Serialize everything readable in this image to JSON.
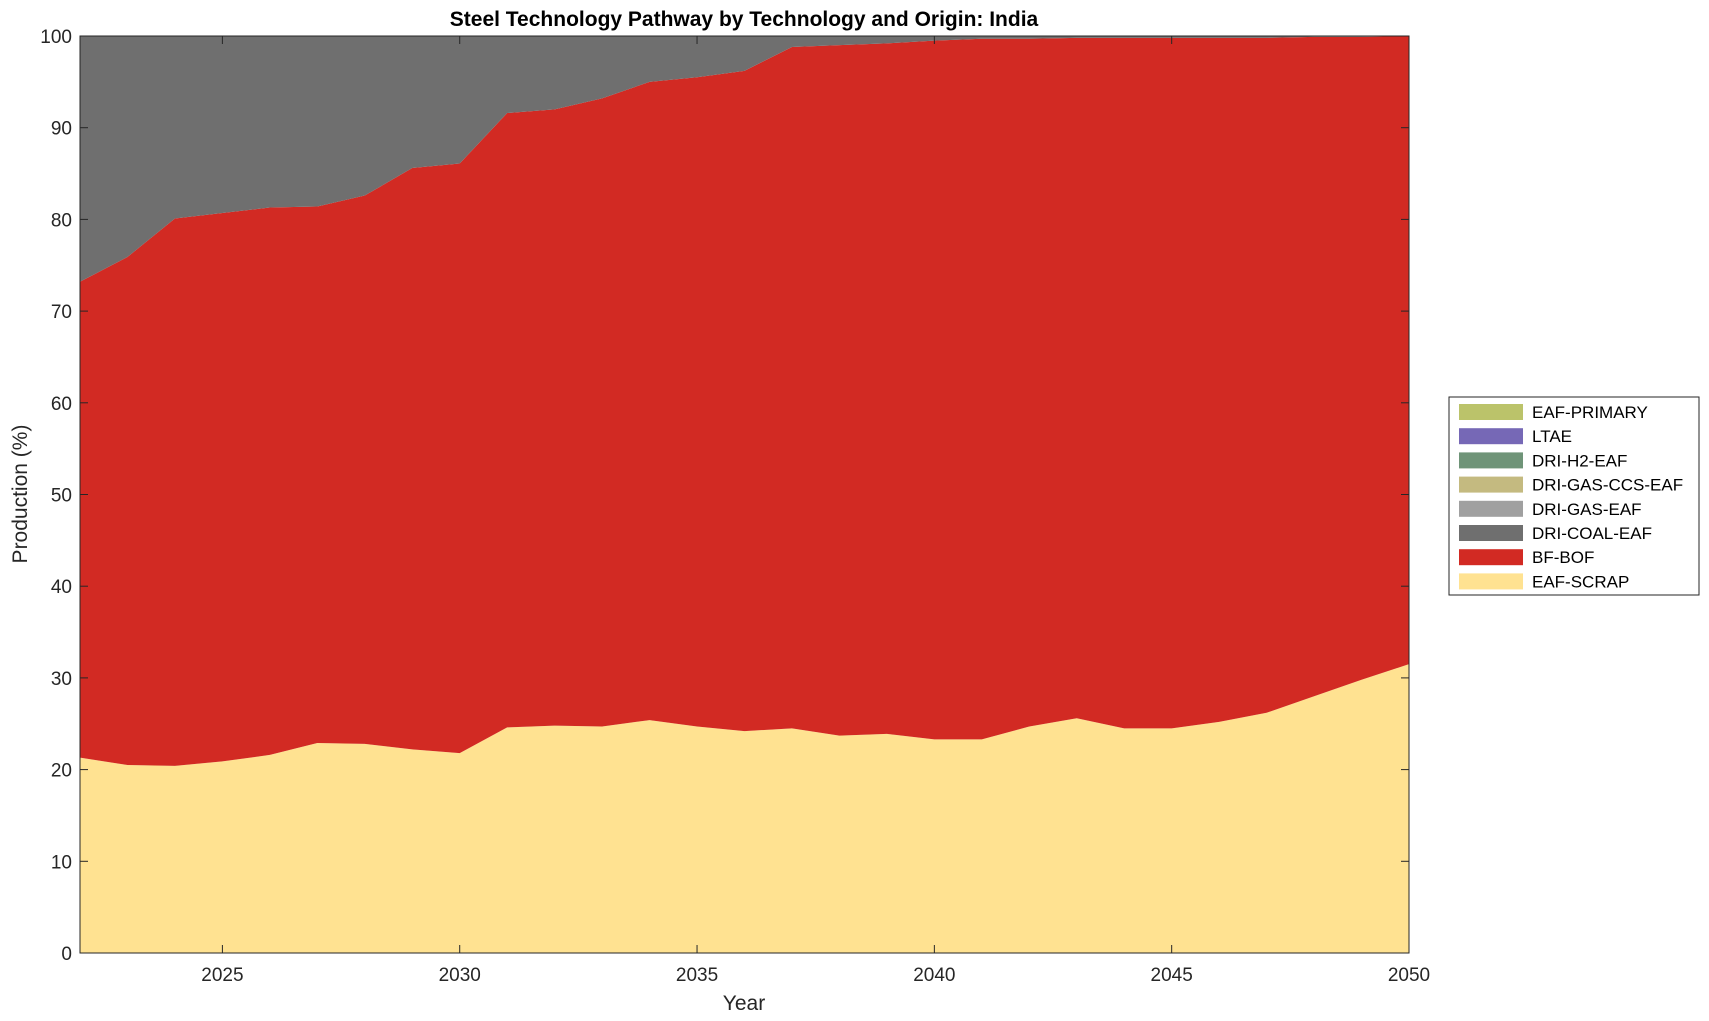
{
  "chart_data": {
    "type": "area",
    "title": "Steel Technology Pathway by Technology and Origin: India",
    "xlabel": "Year",
    "ylabel": "Production (%)",
    "xlim": [
      2022,
      2050
    ],
    "ylim": [
      0,
      100
    ],
    "x_ticks": [
      2025,
      2030,
      2035,
      2040,
      2045,
      2050
    ],
    "y_ticks": [
      0,
      10,
      20,
      30,
      40,
      50,
      60,
      70,
      80,
      90,
      100
    ],
    "grid": false,
    "legend_position": "right",
    "x": [
      2022,
      2023,
      2024,
      2025,
      2026,
      2027,
      2028,
      2029,
      2030,
      2031,
      2032,
      2033,
      2034,
      2035,
      2036,
      2037,
      2038,
      2039,
      2040,
      2041,
      2042,
      2043,
      2044,
      2045,
      2046,
      2047,
      2048,
      2049,
      2050
    ],
    "series": [
      {
        "name": "EAF-SCRAP",
        "color": "#FFE291",
        "values": [
          21.3,
          20.5,
          20.4,
          20.9,
          21.6,
          22.9,
          22.8,
          22.2,
          21.8,
          24.6,
          24.8,
          24.7,
          25.4,
          24.7,
          24.2,
          24.5,
          23.7,
          23.9,
          23.3,
          23.3,
          24.7,
          25.6,
          24.5,
          24.5,
          25.2,
          26.2,
          28.0,
          29.8,
          31.5
        ]
      },
      {
        "name": "BF-BOF",
        "color": "#D22A23",
        "values": [
          51.9,
          55.4,
          59.7,
          59.8,
          59.7,
          58.5,
          59.8,
          63.4,
          64.3,
          67.0,
          67.2,
          68.5,
          69.6,
          70.8,
          72.0,
          74.3,
          75.3,
          75.3,
          76.2,
          76.4,
          75.0,
          74.2,
          75.3,
          75.3,
          74.6,
          73.6,
          71.9,
          70.1,
          68.5
        ]
      },
      {
        "name": "DRI-COAL-EAF",
        "color": "#6F6F6F",
        "values": [
          26.8,
          24.1,
          19.9,
          19.3,
          18.7,
          18.6,
          17.4,
          14.4,
          13.9,
          8.4,
          8.0,
          6.8,
          5.0,
          4.5,
          3.8,
          1.2,
          1.0,
          0.8,
          0.5,
          0.3,
          0.3,
          0.2,
          0.2,
          0.2,
          0.2,
          0.2,
          0.1,
          0.1,
          0.0
        ]
      },
      {
        "name": "DRI-GAS-EAF",
        "color": "#A0A0A0",
        "values": [
          0,
          0,
          0,
          0,
          0,
          0,
          0,
          0,
          0,
          0,
          0,
          0,
          0,
          0,
          0,
          0,
          0,
          0,
          0,
          0,
          0,
          0,
          0,
          0,
          0,
          0,
          0,
          0,
          0
        ]
      },
      {
        "name": "DRI-GAS-CCS-EAF",
        "color": "#C4BA80",
        "values": [
          0,
          0,
          0,
          0,
          0,
          0,
          0,
          0,
          0,
          0,
          0,
          0,
          0,
          0,
          0,
          0,
          0,
          0,
          0,
          0,
          0,
          0,
          0,
          0,
          0,
          0,
          0,
          0,
          0
        ]
      },
      {
        "name": "DRI-H2-EAF",
        "color": "#6F9478",
        "values": [
          0,
          0,
          0,
          0,
          0,
          0,
          0,
          0,
          0,
          0,
          0,
          0,
          0,
          0,
          0,
          0,
          0,
          0,
          0,
          0,
          0,
          0,
          0,
          0,
          0,
          0,
          0,
          0,
          0
        ]
      },
      {
        "name": "LTAE",
        "color": "#7668B6",
        "values": [
          0,
          0,
          0,
          0,
          0,
          0,
          0,
          0,
          0,
          0,
          0,
          0,
          0,
          0,
          0,
          0,
          0,
          0,
          0,
          0,
          0,
          0,
          0,
          0,
          0,
          0,
          0,
          0,
          0
        ]
      },
      {
        "name": "EAF-PRIMARY",
        "color": "#BBC36A",
        "values": [
          0,
          0,
          0,
          0,
          0,
          0,
          0,
          0,
          0,
          0,
          0,
          0,
          0,
          0,
          0,
          0,
          0,
          0,
          0,
          0,
          0,
          0,
          0,
          0,
          0,
          0,
          0,
          0,
          0
        ]
      }
    ]
  }
}
